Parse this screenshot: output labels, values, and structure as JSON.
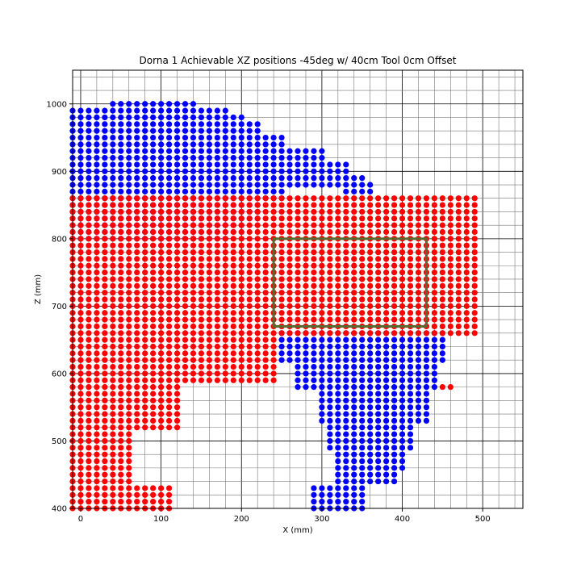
{
  "chart_data": {
    "type": "scatter",
    "title": "Dorna 1 Achievable XZ positions -45deg w/ 40cm Tool 0cm Offset",
    "xlabel": "X (mm)",
    "ylabel": "Z (mm)",
    "xlim": [
      -10,
      550
    ],
    "ylim": [
      400,
      1050
    ],
    "x_ticks": [
      0,
      100,
      200,
      300,
      400,
      500
    ],
    "y_ticks": [
      400,
      500,
      600,
      700,
      800,
      900,
      1000
    ],
    "grid": {
      "major_x_step": 100,
      "major_y_step": 100,
      "minor_x_step": 20,
      "minor_y_step": 20
    },
    "grid_step_mm": 10,
    "colors": {
      "blue": "#0000ff",
      "red": "#ff0000",
      "workspace_box": "#556b2f",
      "grid_major": "#000000",
      "grid_minor": "#777777"
    },
    "series": [
      {
        "color": "blue",
        "regions": [
          {
            "x": [
              -10,
              180
            ],
            "z": [
              800,
              990
            ]
          },
          {
            "x": [
              40,
              140
            ],
            "z": [
              1000,
              1000
            ]
          },
          {
            "x": [
              180,
              200
            ],
            "z": [
              810,
              980
            ]
          },
          {
            "x": [
              200,
              220
            ],
            "z": [
              830,
              970
            ]
          },
          {
            "x": [
              220,
              250
            ],
            "z": [
              860,
              950
            ]
          },
          {
            "x": [
              250,
              300
            ],
            "z": [
              880,
              930
            ]
          },
          {
            "x": [
              300,
              330
            ],
            "z": [
              880,
              910
            ]
          },
          {
            "x": [
              330,
              350
            ],
            "z": [
              870,
              890
            ]
          },
          {
            "x": [
              350,
              360
            ],
            "z": [
              870,
              880
            ]
          },
          {
            "x": [
              250,
              450
            ],
            "z": [
              620,
              660
            ]
          },
          {
            "x": [
              270,
              440
            ],
            "z": [
              580,
              610
            ]
          },
          {
            "x": [
              300,
              430
            ],
            "z": [
              530,
              570
            ]
          },
          {
            "x": [
              310,
              410
            ],
            "z": [
              490,
              520
            ]
          },
          {
            "x": [
              320,
              400
            ],
            "z": [
              460,
              480
            ]
          },
          {
            "x": [
              320,
              390
            ],
            "z": [
              440,
              450
            ]
          },
          {
            "x": [
              290,
              350
            ],
            "z": [
              400,
              430
            ]
          }
        ]
      },
      {
        "color": "red",
        "regions": [
          {
            "x": [
              -10,
              490
            ],
            "z": [
              660,
              860
            ]
          },
          {
            "x": [
              -10,
              240
            ],
            "z": [
              590,
              650
            ]
          },
          {
            "x": [
              -10,
              120
            ],
            "z": [
              520,
              580
            ]
          },
          {
            "x": [
              -10,
              60
            ],
            "z": [
              400,
              510
            ]
          },
          {
            "x": [
              60,
              110
            ],
            "z": [
              400,
              430
            ]
          },
          {
            "x": [
              450,
              460
            ],
            "z": [
              580,
              580
            ]
          }
        ]
      }
    ],
    "workspace_box": {
      "x": [
        240,
        430
      ],
      "z": [
        670,
        800
      ]
    }
  }
}
